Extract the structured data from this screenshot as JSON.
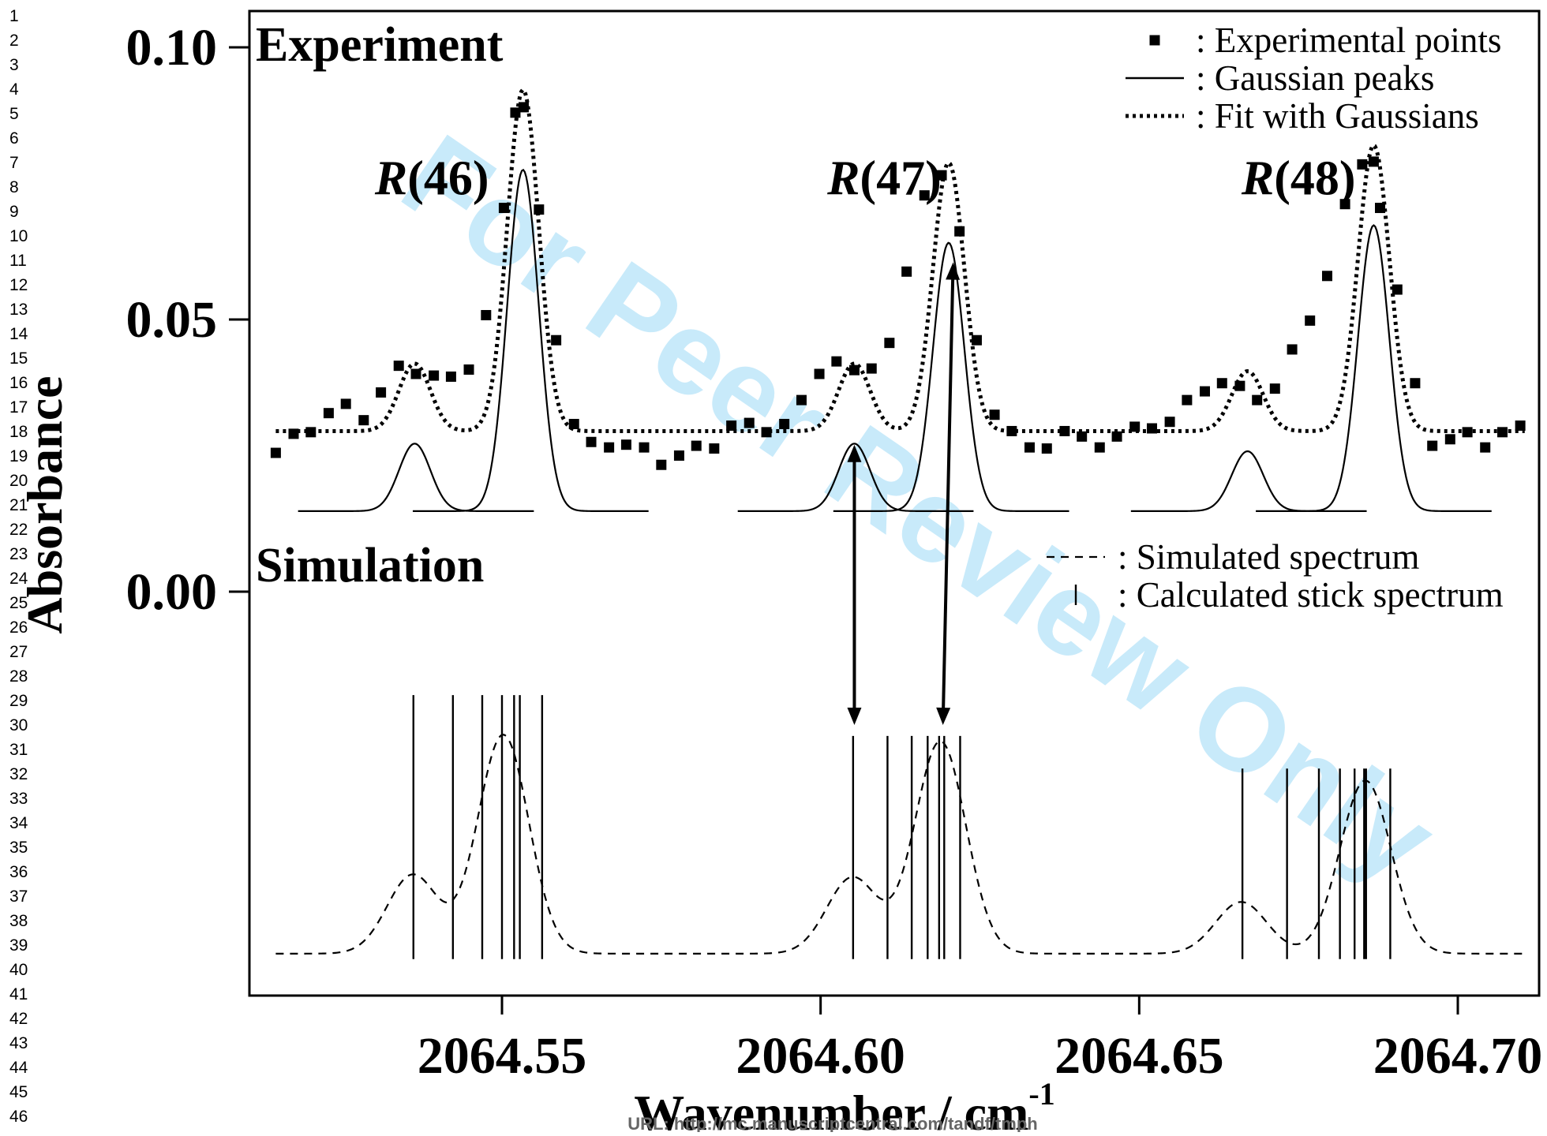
{
  "page": {
    "line_numbers": [
      "1",
      "2",
      "3",
      "4",
      "5",
      "6",
      "7",
      "8",
      "9",
      "10",
      "11",
      "12",
      "13",
      "14",
      "15",
      "16",
      "17",
      "18",
      "19",
      "20",
      "21",
      "22",
      "23",
      "24",
      "25",
      "26",
      "27",
      "28",
      "29",
      "30",
      "31",
      "32",
      "33",
      "34",
      "35",
      "36",
      "37",
      "38",
      "39",
      "40",
      "41",
      "42",
      "43",
      "44",
      "45",
      "46"
    ],
    "footer_url": "URL: http://mc.manuscriptcentral.com/tandf/tmph",
    "watermark": "For Peer Review Only"
  },
  "colors": {
    "ink": "#000000",
    "watermark": "#9ad8f5",
    "footer": "#666666"
  },
  "chart_data": {
    "type": "scatter",
    "xlabel": "Wavenumber / cm",
    "xlabel_superscript": "-1",
    "ylabel": "Absorbance",
    "xlim": [
      2064.512,
      2064.712
    ],
    "ylim": [
      -0.075,
      0.107
    ],
    "x_ticks": [
      2064.55,
      2064.6,
      2064.65,
      2064.7
    ],
    "x_tick_labels": [
      "2064.55",
      "2064.60",
      "2064.65",
      "2064.70"
    ],
    "y_ticks": [
      0.1,
      0.05,
      0.0
    ],
    "y_tick_labels": [
      "0.10",
      "0.05",
      "0.00"
    ],
    "grid": false,
    "panels": [
      {
        "title": "Experiment",
        "position": "top-left"
      },
      {
        "title": "Simulation",
        "position": "middle-left"
      }
    ],
    "legend_experiment": {
      "position": "top-right",
      "entries": [
        {
          "label": ": Experimental points",
          "marker": "filled-square"
        },
        {
          "label": ": Gaussian peaks",
          "marker": "solid-line"
        },
        {
          "label": ": Fit with Gaussians",
          "marker": "dotted-line"
        }
      ]
    },
    "legend_simulation": {
      "position": "middle-right",
      "entries": [
        {
          "label": ": Simulated spectrum",
          "marker": "dashed-line"
        },
        {
          "label": ": Calculated stick spectrum",
          "marker": "stick"
        }
      ]
    },
    "peak_labels": [
      {
        "italic": "R",
        "rest": "(46)",
        "x": 2064.539,
        "y": 0.073
      },
      {
        "italic": "R",
        "rest": "(47)",
        "x": 2064.61,
        "y": 0.073
      },
      {
        "italic": "R",
        "rest": "(48)",
        "x": 2064.675,
        "y": 0.073
      }
    ],
    "experimental_points": {
      "x": [
        2064.5145,
        2064.5173,
        2064.52,
        2064.5228,
        2064.5255,
        2064.5283,
        2064.531,
        2064.5338,
        2064.5365,
        2064.5393,
        2064.542,
        2064.5448,
        2064.5475,
        2064.5503,
        2064.5521,
        2064.5534,
        2064.5558,
        2064.5585,
        2064.5613,
        2064.564,
        2064.5668,
        2064.5695,
        2064.5723,
        2064.575,
        2064.5778,
        2064.5805,
        2064.5833,
        2064.586,
        2064.5888,
        2064.5915,
        2064.5943,
        2064.597,
        2064.5998,
        2064.6025,
        2064.6053,
        2064.608,
        2064.6108,
        2064.6135,
        2064.6163,
        2064.619,
        2064.6218,
        2064.6245,
        2064.6273,
        2064.63,
        2064.6328,
        2064.6355,
        2064.6383,
        2064.641,
        2064.6438,
        2064.6465,
        2064.6493,
        2064.652,
        2064.6548,
        2064.6575,
        2064.6603,
        2064.663,
        2064.6658,
        2064.6685,
        2064.6713,
        2064.674,
        2064.6768,
        2064.6795,
        2064.6823,
        2064.685,
        2064.6868,
        2064.6878,
        2064.6905,
        2064.6933,
        2064.696,
        2064.6988,
        2064.7015,
        2064.7043,
        2064.707,
        2064.7098
      ],
      "y": [
        0.0255,
        0.029,
        0.0293,
        0.0328,
        0.0345,
        0.0315,
        0.0366,
        0.0415,
        0.04,
        0.0397,
        0.0395,
        0.0408,
        0.0508,
        0.0705,
        0.088,
        0.089,
        0.0702,
        0.0462,
        0.0308,
        0.0275,
        0.0265,
        0.027,
        0.0265,
        0.0233,
        0.025,
        0.0268,
        0.0263,
        0.0305,
        0.031,
        0.0293,
        0.0308,
        0.0352,
        0.04,
        0.0423,
        0.0407,
        0.041,
        0.0457,
        0.0588,
        0.0728,
        0.0765,
        0.0662,
        0.0462,
        0.0325,
        0.0295,
        0.0265,
        0.0263,
        0.0295,
        0.0285,
        0.0265,
        0.0285,
        0.0303,
        0.03,
        0.0312,
        0.0352,
        0.0368,
        0.0383,
        0.0378,
        0.0352,
        0.0373,
        0.0445,
        0.0498,
        0.058,
        0.0712,
        0.0785,
        0.079,
        0.0705,
        0.0555,
        0.0383,
        0.0268,
        0.028,
        0.0293,
        0.0265,
        0.0293,
        0.0305
      ]
    },
    "gaussian_peaks": {
      "baseline": 0.0148,
      "peaks": [
        {
          "center": 2064.5363,
          "height": 0.0124,
          "fwhm": 0.0058,
          "range": [
            2064.518,
            2064.555
          ]
        },
        {
          "center": 2064.5533,
          "height": 0.0627,
          "fwhm": 0.0058,
          "range": [
            2064.536,
            2064.573
          ]
        },
        {
          "center": 2064.6053,
          "height": 0.0124,
          "fwhm": 0.0058,
          "range": [
            2064.587,
            2064.624
          ]
        },
        {
          "center": 2064.6201,
          "height": 0.0493,
          "fwhm": 0.0058,
          "range": [
            2064.602,
            2064.639
          ]
        },
        {
          "center": 2064.667,
          "height": 0.011,
          "fwhm": 0.0058,
          "range": [
            2064.6487,
            2064.6857
          ]
        },
        {
          "center": 2064.6868,
          "height": 0.0525,
          "fwhm": 0.0058,
          "range": [
            2064.6683,
            2064.7053
          ]
        }
      ]
    },
    "fit_baseline": 0.0295,
    "fit_range": [
      2064.5145,
      2064.7105
    ],
    "sim_baseline": -0.0665,
    "sim_range": [
      2064.5145,
      2064.7105
    ],
    "simulated_peaks": [
      {
        "center": 2064.536,
        "height": 0.0145,
        "sigma": 0.004
      },
      {
        "center": 2064.5502,
        "height": 0.0402,
        "sigma": 0.004
      },
      {
        "center": 2064.605,
        "height": 0.014,
        "sigma": 0.004
      },
      {
        "center": 2064.6188,
        "height": 0.039,
        "sigma": 0.004
      },
      {
        "center": 2064.666,
        "height": 0.0095,
        "sigma": 0.004
      },
      {
        "center": 2064.6855,
        "height": 0.0318,
        "sigma": 0.004
      }
    ],
    "stick_baseline": -0.0675,
    "stick_spectrum": [
      {
        "x": 2064.5361,
        "top": -0.019
      },
      {
        "x": 2064.5423,
        "top": -0.019
      },
      {
        "x": 2064.5469,
        "top": -0.019
      },
      {
        "x": 2064.55,
        "top": -0.019
      },
      {
        "x": 2064.5519,
        "top": -0.019
      },
      {
        "x": 2064.5528,
        "top": -0.019
      },
      {
        "x": 2064.5563,
        "top": -0.019
      },
      {
        "x": 2064.6051,
        "top": -0.0265
      },
      {
        "x": 2064.6105,
        "top": -0.0265
      },
      {
        "x": 2064.6143,
        "top": -0.0265
      },
      {
        "x": 2064.6168,
        "top": -0.0265
      },
      {
        "x": 2064.6186,
        "top": -0.0265
      },
      {
        "x": 2064.6194,
        "top": -0.0265
      },
      {
        "x": 2064.6219,
        "top": -0.0265
      },
      {
        "x": 2064.6662,
        "top": -0.0325
      },
      {
        "x": 2064.6732,
        "top": -0.0325
      },
      {
        "x": 2064.6782,
        "top": -0.0325
      },
      {
        "x": 2064.6815,
        "top": -0.0325
      },
      {
        "x": 2064.6838,
        "top": -0.0325
      },
      {
        "x": 2064.6853,
        "top": -0.0325
      },
      {
        "x": 2064.6856,
        "top": -0.0325
      },
      {
        "x": 2064.6894,
        "top": -0.0325
      }
    ],
    "arrows": [
      {
        "from": [
          2064.6053,
          0.027
        ],
        "to": [
          2064.6053,
          -0.0245
        ]
      },
      {
        "from": [
          2064.6208,
          0.0605
        ],
        "to": [
          2064.6192,
          -0.0245
        ]
      }
    ]
  }
}
